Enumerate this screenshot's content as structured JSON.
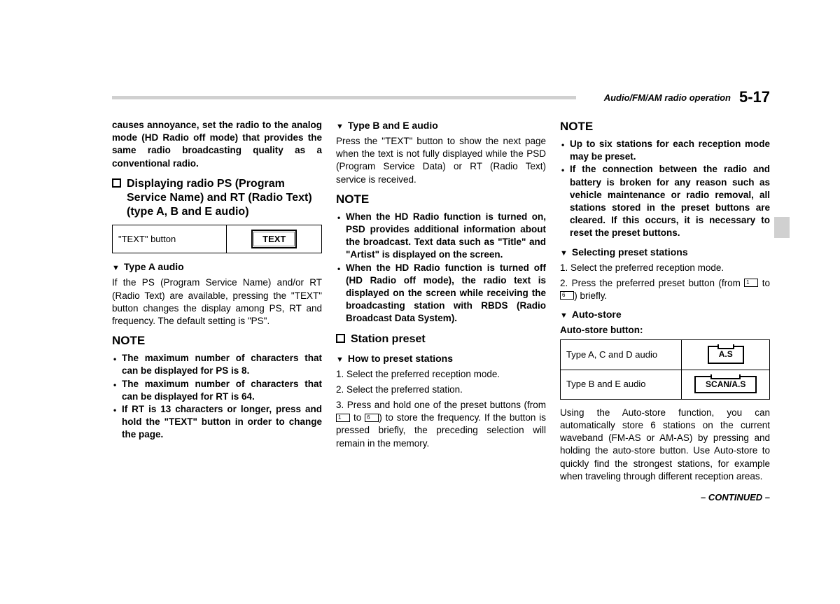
{
  "header": {
    "breadcrumb": "Audio/FM/AM radio operation",
    "page_number": "5-17"
  },
  "col1": {
    "intro_bold": "causes annoyance, set the radio to the analog mode (HD Radio off mode) that provides the same radio broadcasting quality as a conventional radio.",
    "sec_title": "Displaying radio PS (Program Service Name) and RT (Radio Text) (type A, B and E audio)",
    "text_button_label": "\"TEXT\" button",
    "text_button": "TEXT",
    "type_a_heading": "Type A audio",
    "type_a_body": "If the PS (Program Service Name) and/or RT (Radio Text) are available, pressing the \"TEXT\" button changes the display among PS, RT and frequency. The default setting is \"PS\".",
    "note_label": "NOTE",
    "note_items": [
      "The maximum number of characters that can be displayed for PS is 8.",
      "The maximum number of characters that can be displayed for RT is 64.",
      "If RT is 13 characters or longer, press and hold the \"TEXT\" button in order to change the page."
    ]
  },
  "col2": {
    "type_be_heading": "Type B and E audio",
    "type_be_body": "Press the \"TEXT\" button to show the next page when the text is not fully displayed while the PSD (Program Service Data) or RT (Radio Text) service is received.",
    "note_label": "NOTE",
    "note_items": [
      "When the HD Radio function is turned on, PSD provides additional information about the broadcast. Text data such as \"Title\" and \"Artist\" is displayed on the screen.",
      "When the HD Radio function is turned off (HD Radio off mode), the radio text is displayed on the screen while receiving the broadcasting station with RBDS (Radio Broadcast Data System)."
    ],
    "sec_station": "Station preset",
    "howto_heading": "How to preset stations",
    "step1": "1.  Select the preferred reception mode.",
    "step2": "2.  Select the preferred station.",
    "step3_a": "3. Press and hold one of the preset buttons (from ",
    "step3_b": " to ",
    "step3_c": ") to store the frequency. If the button is pressed briefly, the preceding selection will remain in the memory.",
    "key1": "1",
    "key6": "6"
  },
  "col3": {
    "note_label": "NOTE",
    "note_items": [
      "Up to six stations for each reception mode may be preset.",
      "If the connection between the radio and battery is broken for any reason such as vehicle maintenance or radio removal, all stations stored in the preset buttons are cleared. If this occurs, it is necessary to reset the preset buttons."
    ],
    "select_heading": "Selecting preset stations",
    "select_step1": "1.  Select the preferred reception mode.",
    "select_step2_a": "2. Press the preferred preset button (from ",
    "select_step2_b": " to ",
    "select_step2_c": ") briefly.",
    "key1": "1",
    "key6": "6",
    "autostore_heading": "Auto-store",
    "autostore_label": "Auto-store button:",
    "row1_label": "Type A, C and D audio",
    "row1_btn": "A.S",
    "row2_label": "Type B and E audio",
    "row2_btn": "SCAN/A.S",
    "autostore_body": "Using the Auto-store function, you can automatically store 6 stations on the current waveband (FM-AS or AM-AS) by pressing and holding the auto-store button. Use Auto-store to quickly find the strongest stations, for example when traveling through different reception areas.",
    "continued": "– CONTINUED –"
  }
}
